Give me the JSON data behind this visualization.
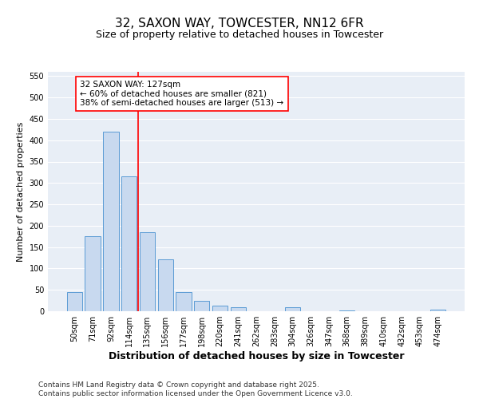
{
  "title1": "32, SAXON WAY, TOWCESTER, NN12 6FR",
  "title2": "Size of property relative to detached houses in Towcester",
  "xlabel": "Distribution of detached houses by size in Towcester",
  "ylabel": "Number of detached properties",
  "categories": [
    "50sqm",
    "71sqm",
    "92sqm",
    "114sqm",
    "135sqm",
    "156sqm",
    "177sqm",
    "198sqm",
    "220sqm",
    "241sqm",
    "262sqm",
    "283sqm",
    "304sqm",
    "326sqm",
    "347sqm",
    "368sqm",
    "389sqm",
    "410sqm",
    "432sqm",
    "453sqm",
    "474sqm"
  ],
  "values": [
    45,
    175,
    420,
    315,
    185,
    122,
    45,
    25,
    13,
    10,
    0,
    0,
    10,
    0,
    0,
    2,
    0,
    0,
    0,
    0,
    3
  ],
  "bar_color": "#c8d9ef",
  "bar_edge_color": "#5b9bd5",
  "vline_x": 3.5,
  "vline_color": "red",
  "annotation_text": "32 SAXON WAY: 127sqm\n← 60% of detached houses are smaller (821)\n38% of semi-detached houses are larger (513) →",
  "annotation_box_color": "white",
  "annotation_box_edge": "red",
  "ylim": [
    0,
    560
  ],
  "yticks": [
    0,
    50,
    100,
    150,
    200,
    250,
    300,
    350,
    400,
    450,
    500,
    550
  ],
  "background_color": "#e8eef6",
  "footer1": "Contains HM Land Registry data © Crown copyright and database right 2025.",
  "footer2": "Contains public sector information licensed under the Open Government Licence v3.0.",
  "title1_fontsize": 11,
  "title2_fontsize": 9,
  "annotation_fontsize": 7.5,
  "xlabel_fontsize": 9,
  "ylabel_fontsize": 8,
  "tick_fontsize": 7,
  "footer_fontsize": 6.5
}
